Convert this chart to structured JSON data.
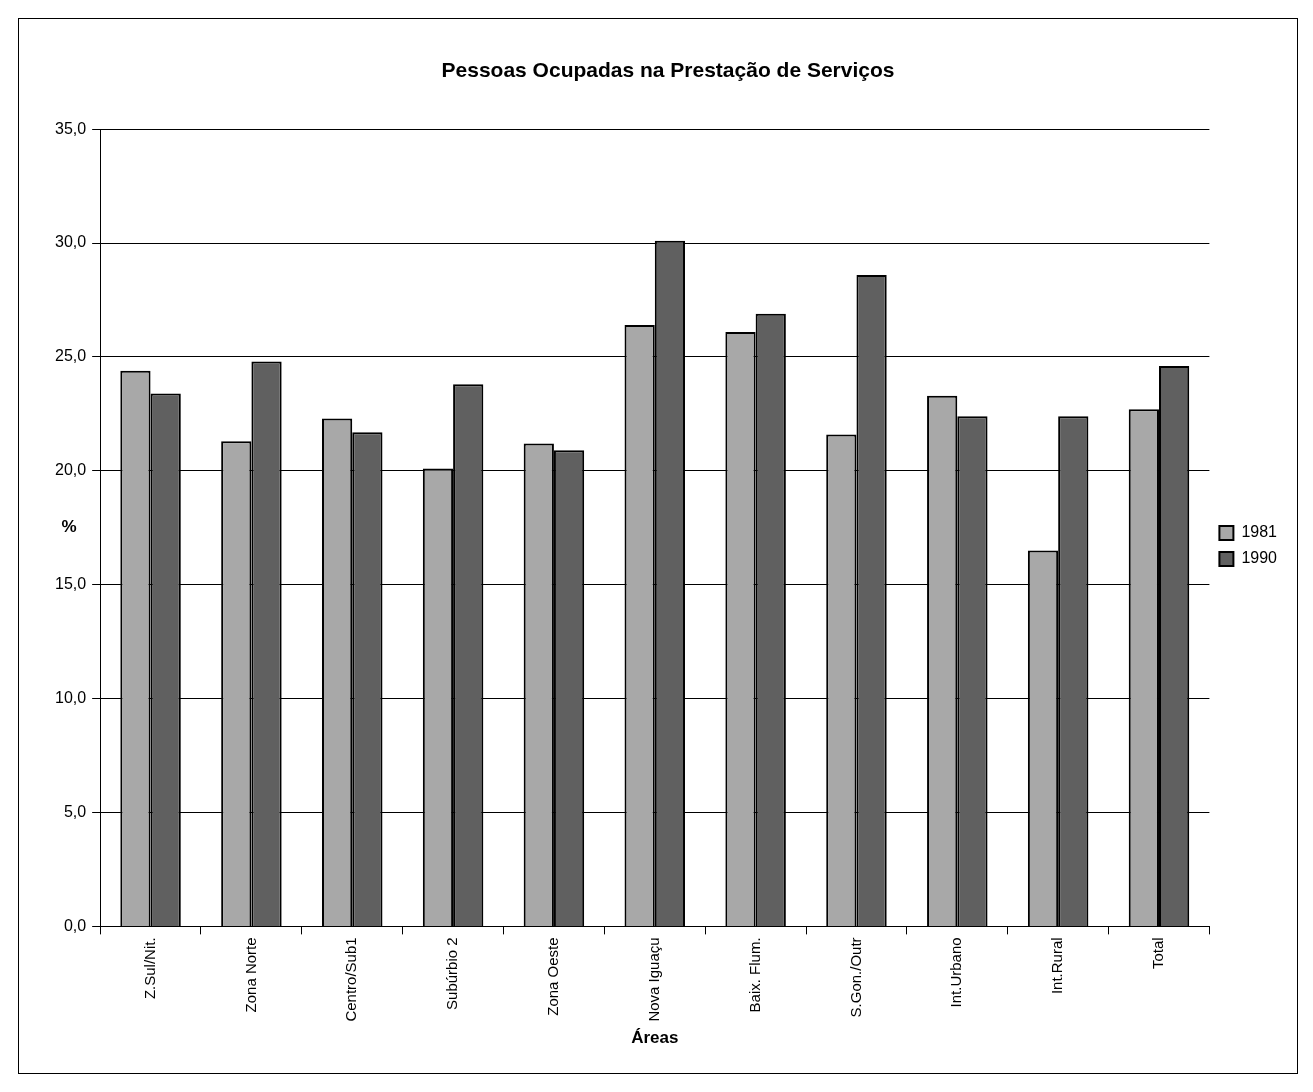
{
  "chart_data": {
    "type": "bar",
    "title": "Pessoas Ocupadas na Prestação de Serviços",
    "xlabel": "Áreas",
    "ylabel": "%",
    "categories": [
      "Z.Sul/Nit.",
      "Zona Norte",
      "Centro/Sub1",
      "Subúrbio 2",
      "Zona Oeste",
      "Nova Iguaçu",
      "Baix. Flum.",
      "S.Gon./Outr",
      "Int.Urbano",
      "Int.Rural",
      "Total"
    ],
    "series": [
      {
        "name": "1981",
        "color": "#a8a8a8",
        "values": [
          24.4,
          21.3,
          22.3,
          20.1,
          21.2,
          26.4,
          26.1,
          21.6,
          23.3,
          16.5,
          22.7
        ]
      },
      {
        "name": "1990",
        "color": "#606060",
        "values": [
          23.4,
          24.8,
          21.7,
          23.8,
          20.9,
          30.1,
          26.9,
          28.6,
          22.4,
          22.4,
          24.6
        ]
      }
    ],
    "ylim": [
      0,
      35
    ],
    "yticks": [
      {
        "value": 0,
        "label": "0,0"
      },
      {
        "value": 5,
        "label": "5,0"
      },
      {
        "value": 10,
        "label": "10,0"
      },
      {
        "value": 15,
        "label": "15,0"
      },
      {
        "value": 20,
        "label": "20,0"
      },
      {
        "value": 25,
        "label": "25,0"
      },
      {
        "value": 30,
        "label": "30,0"
      },
      {
        "value": 35,
        "label": "35,0"
      }
    ],
    "grid": "y",
    "legend": "right"
  }
}
